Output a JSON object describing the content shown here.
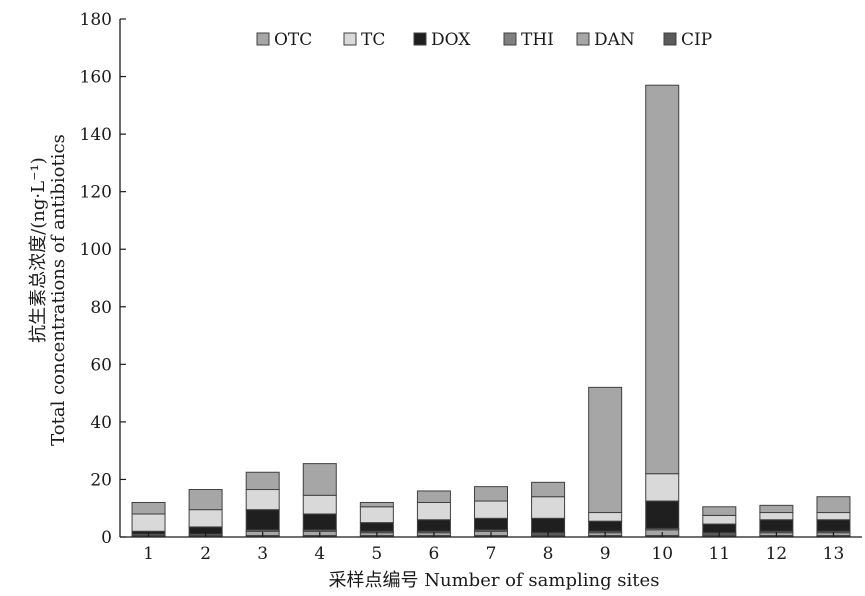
{
  "chart_data": {
    "type": "bar",
    "stacked": true,
    "categories": [
      "1",
      "2",
      "3",
      "4",
      "5",
      "6",
      "7",
      "8",
      "9",
      "10",
      "11",
      "12",
      "13"
    ],
    "ylim": [
      0,
      180
    ],
    "yticks": [
      0,
      20,
      40,
      60,
      80,
      100,
      120,
      140,
      160,
      180
    ],
    "ylabel_cn": "抗生素总浓度/(ng·L⁻¹)",
    "ylabel_en": "Total concentrations of antibiotics",
    "xlabel": "采样点编号 Number of sampling sites",
    "legend_position": "top",
    "series": [
      {
        "name": "CIP",
        "color": "#5a5a5a",
        "values": [
          0.5,
          0.5,
          0.5,
          0.5,
          0.5,
          0.5,
          0.5,
          0.5,
          0.5,
          0.5,
          0.5,
          0.5,
          0.5
        ]
      },
      {
        "name": "DAN",
        "color": "#a6a6a6",
        "values": [
          0,
          0,
          1.5,
          1.5,
          1,
          1,
          1.5,
          0.5,
          1,
          2,
          0.5,
          1,
          1
        ]
      },
      {
        "name": "THI",
        "color": "#7f7f7f",
        "values": [
          0.5,
          0.5,
          0.5,
          0.5,
          0.5,
          0.5,
          0.5,
          0.5,
          0.5,
          0.5,
          0.5,
          0.5,
          0.5
        ]
      },
      {
        "name": "DOX",
        "color": "#1f1f1f",
        "values": [
          1,
          2.5,
          7,
          5.5,
          3,
          4,
          4,
          5,
          3.5,
          9.5,
          3,
          4,
          4
        ]
      },
      {
        "name": "TC",
        "color": "#d9d9d9",
        "values": [
          6,
          6,
          7,
          6.5,
          5.5,
          6,
          6,
          7.5,
          3,
          9.5,
          3,
          2.5,
          2.5
        ]
      },
      {
        "name": "OTC",
        "color": "#a6a6a6",
        "values": [
          4,
          7,
          6,
          11,
          1.5,
          4,
          5,
          5,
          43.5,
          135,
          3,
          2.5,
          5.5
        ]
      }
    ],
    "legend_order": [
      "OTC",
      "TC",
      "DOX",
      "THI",
      "DAN",
      "CIP"
    ]
  }
}
